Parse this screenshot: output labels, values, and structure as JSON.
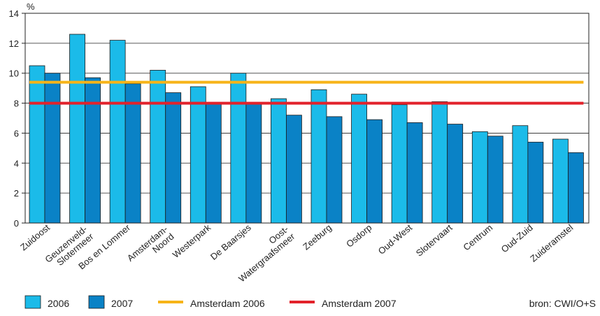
{
  "chart_data": {
    "type": "bar",
    "yunit": "%",
    "ylim": [
      0,
      14
    ],
    "yticks": [
      0,
      2,
      4,
      6,
      8,
      10,
      12,
      14
    ],
    "grid": true,
    "categories": [
      [
        "Zuidoost"
      ],
      [
        "Geuzenveld-",
        "Slotermeer"
      ],
      [
        "Bos en Lommer"
      ],
      [
        "Amsterdam-",
        "Noord"
      ],
      [
        "Westerpark"
      ],
      [
        "De Baarsjes"
      ],
      [
        "Oost-",
        "Watergraafsmeer"
      ],
      [
        "Zeeburg"
      ],
      [
        "Osdorp"
      ],
      [
        "Oud-West"
      ],
      [
        "Slotervaart"
      ],
      [
        "Centrum"
      ],
      [
        "Oud-Zuid"
      ],
      [
        "Zuideramstel"
      ]
    ],
    "series": [
      {
        "name": "2006",
        "color": "#1bbbe9",
        "values": [
          10.5,
          12.6,
          12.2,
          10.2,
          9.1,
          10.0,
          8.3,
          8.9,
          8.6,
          7.9,
          8.1,
          6.1,
          6.5,
          5.6
        ]
      },
      {
        "name": "2007",
        "color": "#0a82c6",
        "values": [
          10.0,
          9.7,
          9.3,
          8.7,
          8.0,
          8.0,
          7.2,
          7.1,
          6.9,
          6.7,
          6.6,
          5.8,
          5.4,
          4.7
        ]
      }
    ],
    "reference_lines": [
      {
        "name": "Amsterdam 2006",
        "color": "#f7b418",
        "value": 9.4
      },
      {
        "name": "Amsterdam 2007",
        "color": "#e2222b",
        "value": 8.0
      }
    ],
    "legend_placement": "bottom",
    "source": "bron: CWI/O+S"
  }
}
